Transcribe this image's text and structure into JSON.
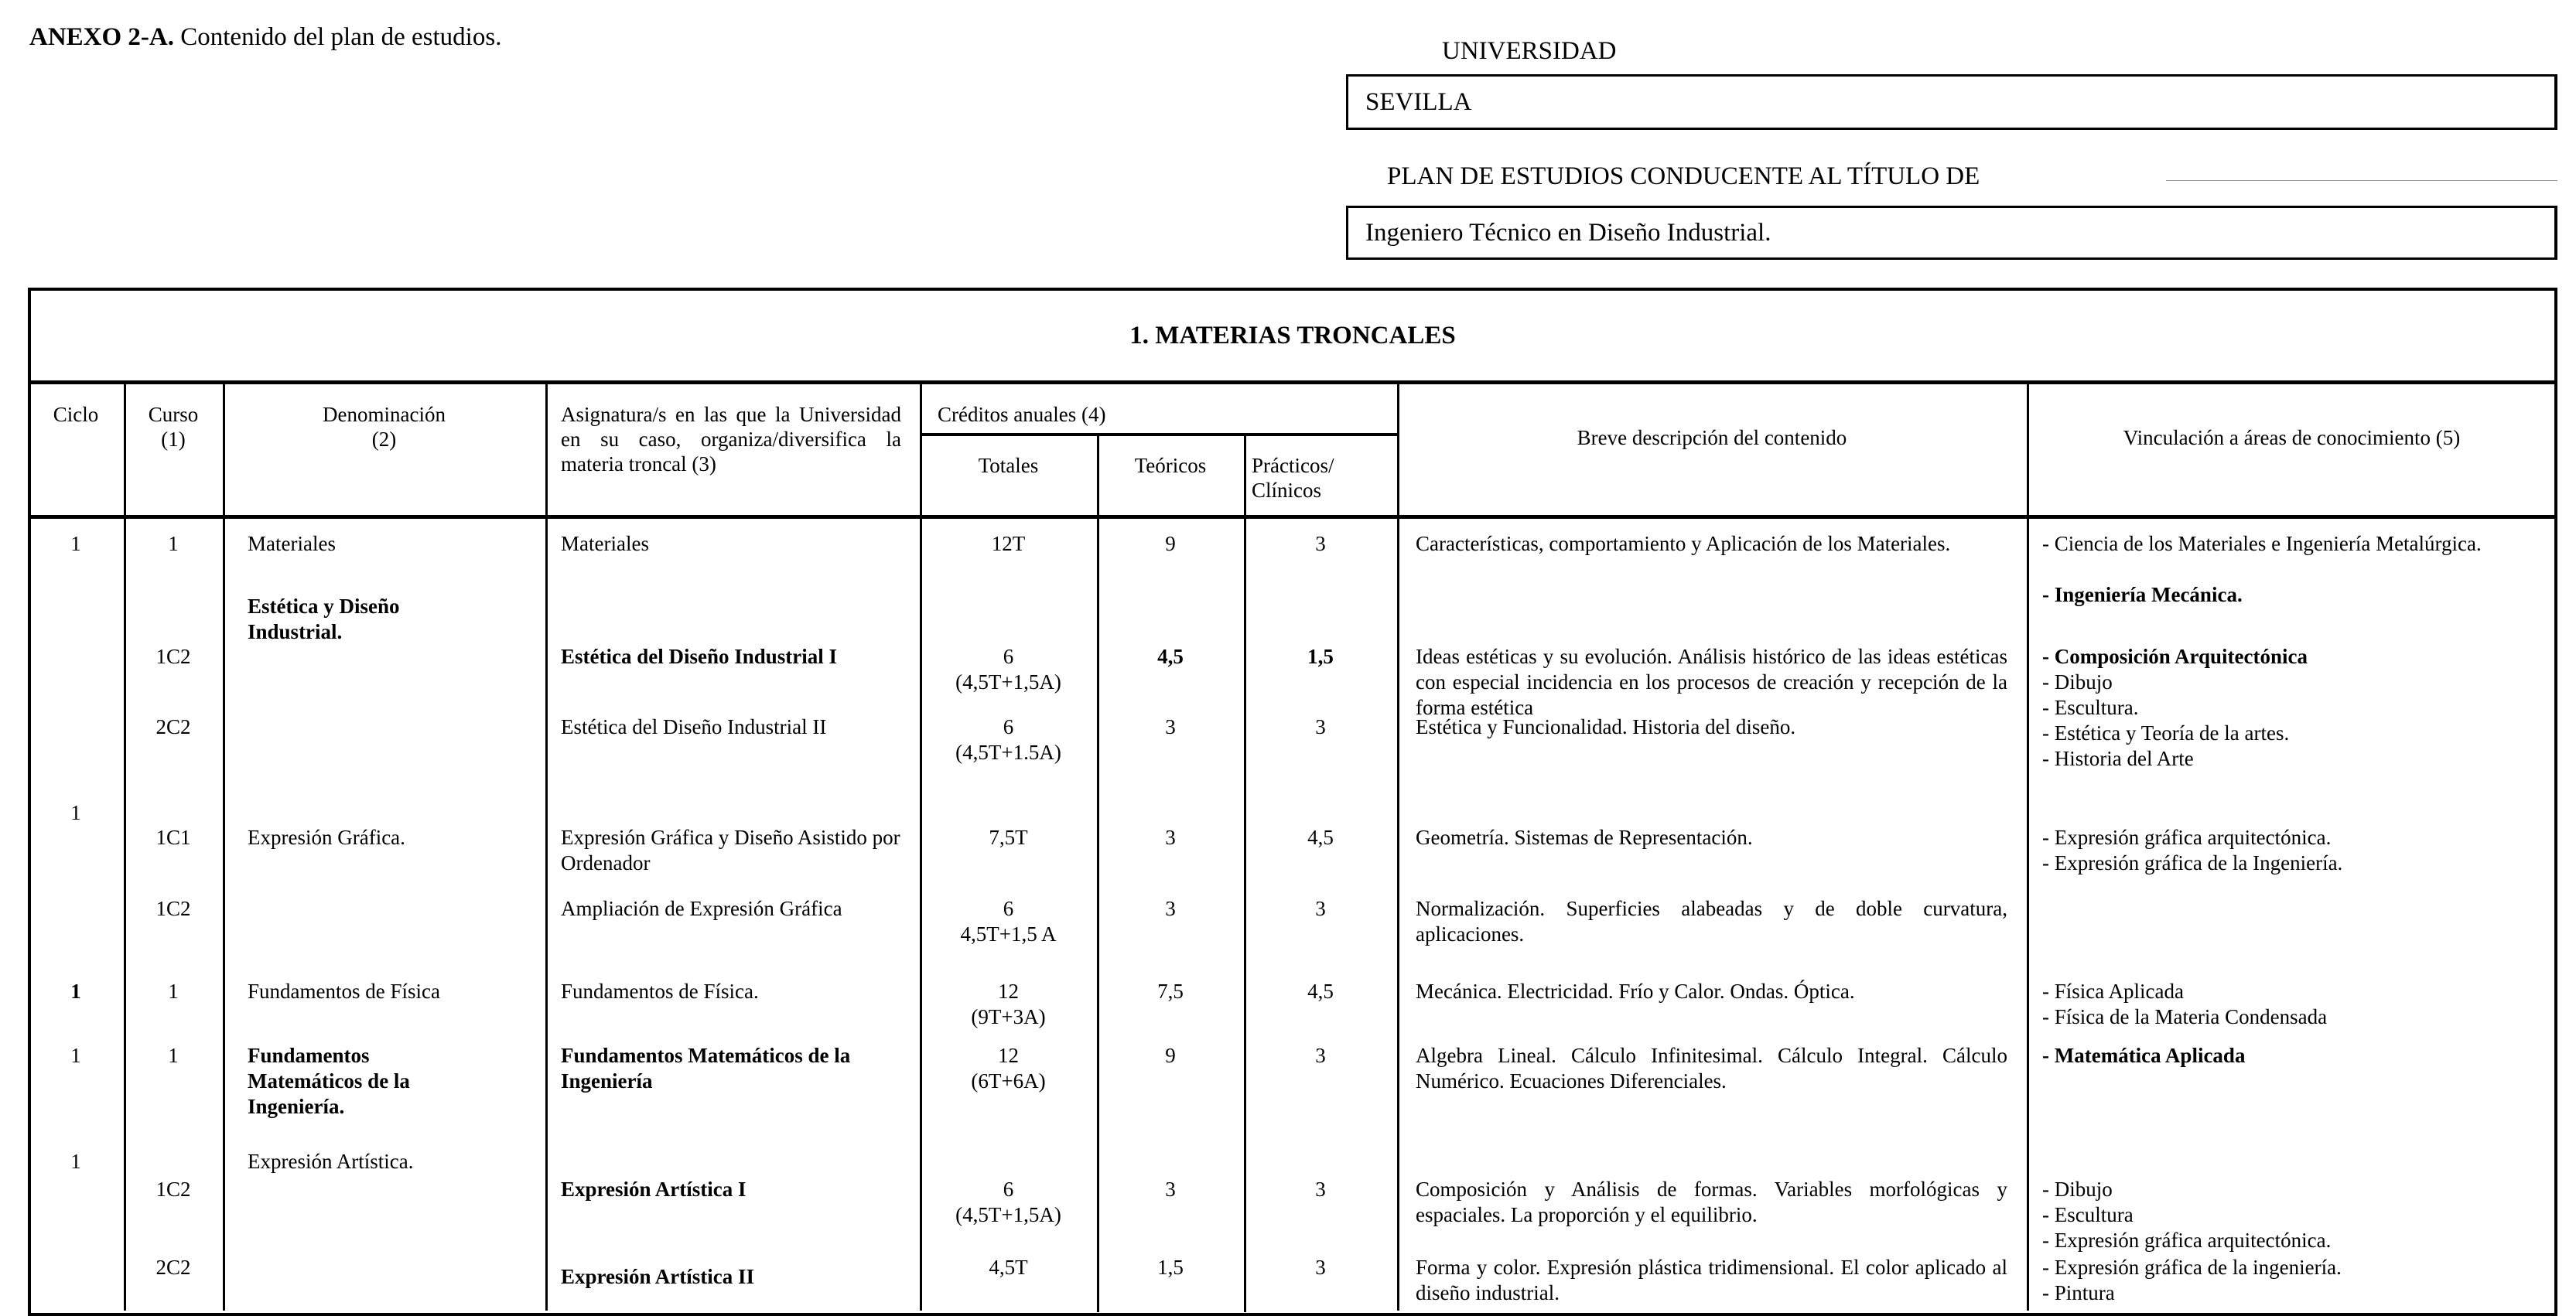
{
  "annex": {
    "code": "ANEXO 2-A.",
    "title": "Contenido del plan de estudios."
  },
  "university": {
    "label": "UNIVERSIDAD",
    "value": "SEVILLA"
  },
  "plan": {
    "label": "PLAN DE ESTUDIOS CONDUCENTE AL TÍTULO DE",
    "value": "Ingeniero Técnico  en Diseño Industrial."
  },
  "table": {
    "title": "1. MATERIAS TRONCALES",
    "headers": {
      "ciclo": "Ciclo",
      "curso": "Curso\n(1)",
      "denominacion": "Denominación\n(2)",
      "asignatura": "Asignatura/s en las que la Universidad en su caso, organiza/diversifica la materia troncal (3)",
      "creditos": "Créditos anuales (4)",
      "totales": "Totales",
      "teoricos": "Teóricos",
      "practicos": "Prácticos/\nClínicos",
      "descripcion": "Breve descripción del contenido",
      "vinculacion": "Vinculación a áreas de conocimiento (5)"
    },
    "rows": [
      {
        "ciclo": "1",
        "curso": "1",
        "denominacion": "Materiales",
        "asignatura": "Materiales",
        "totales": "12T",
        "teoricos": "9",
        "practicos": "3",
        "descripcion": "Características, comportamiento y Aplicación de los Materiales.",
        "areas": [
          "- Ciencia de los Materiales e Ingeniería Metalúrgica.",
          "- Ingeniería Mecánica."
        ]
      },
      {
        "ciclo": "",
        "curso": "",
        "denominacion": "Estética y Diseño Industrial.",
        "asignatura": "",
        "totales": "",
        "teoricos": "",
        "practicos": "",
        "descripcion": "",
        "areas": []
      },
      {
        "ciclo": "",
        "curso": "1C2",
        "denominacion": "",
        "asignatura": "Estética del Diseño Industrial I",
        "totales": "6\n(4,5T+1,5A)",
        "teoricos": "4,5",
        "practicos": "1,5",
        "descripcion": "Ideas estéticas y su evolución. Análisis histórico de las ideas estéticas con especial incidencia en los procesos de creación y recepción de la forma estética",
        "areas": [
          "- Composición Arquitectónica",
          "- Dibujo",
          "- Escultura.",
          "- Estética y Teoría de la artes.",
          "- Historia del Arte"
        ]
      },
      {
        "ciclo": "",
        "curso": "2C2",
        "denominacion": "",
        "asignatura": "Estética del Diseño Industrial II",
        "totales": "6\n(4,5T+1.5A)",
        "teoricos": "3",
        "practicos": "3",
        "descripcion": "Estética y Funcionalidad. Historia del diseño.",
        "areas": []
      },
      {
        "ciclo": "1",
        "curso": "",
        "denominacion": "",
        "asignatura": "",
        "totales": "",
        "teoricos": "",
        "practicos": "",
        "descripcion": "",
        "areas": []
      },
      {
        "ciclo": "",
        "curso": "1C1",
        "denominacion": "Expresión Gráfica.",
        "asignatura": "Expresión Gráfica y Diseño Asistido por Ordenador",
        "totales": "7,5T",
        "teoricos": "3",
        "practicos": "4,5",
        "descripcion": "Geometría. Sistemas de Representación.",
        "areas": [
          "- Expresión gráfica arquitectónica.",
          "- Expresión gráfica de la Ingeniería."
        ]
      },
      {
        "ciclo": "",
        "curso": "1C2",
        "denominacion": "",
        "asignatura": "Ampliación de Expresión Gráfica",
        "totales": "6\n4,5T+1,5 A",
        "teoricos": "3",
        "practicos": "3",
        "descripcion": " Normalización. Superficies alabeadas y de doble curvatura, aplicaciones.",
        "areas": []
      },
      {
        "ciclo": "1",
        "curso": "1",
        "denominacion": "Fundamentos de Física",
        "asignatura": "Fundamentos de Física.",
        "totales": "12\n(9T+3A)",
        "teoricos": "7,5",
        "practicos": "4,5",
        "descripcion": "Mecánica.  Electricidad. Frío y Calor. Ondas. Óptica.",
        "areas": [
          "- Física Aplicada",
          "- Física de la Materia Condensada"
        ]
      },
      {
        "ciclo": "1",
        "curso": "1",
        "denominacion": "Fundamentos Matemáticos de la Ingeniería.",
        "asignatura": "Fundamentos Matemáticos de la Ingeniería",
        "totales": "12\n(6T+6A)",
        "teoricos": "9",
        "practicos": "3",
        "descripcion": "Algebra Lineal. Cálculo Infinitesimal. Cálculo Integral. Cálculo Numérico. Ecuaciones Diferenciales.",
        "areas": [
          "- Matemática Aplicada"
        ]
      },
      {
        "ciclo": "1",
        "curso": "",
        "denominacion": "Expresión Artística.",
        "asignatura": "",
        "totales": "",
        "teoricos": "",
        "practicos": "",
        "descripcion": "",
        "areas": []
      },
      {
        "ciclo": "",
        "curso": "1C2",
        "denominacion": "",
        "asignatura": "Expresión Artística I",
        "totales": "6\n(4,5T+1,5A)",
        "teoricos": "3",
        "practicos": "3",
        "descripcion": "Composición y Análisis de formas. Variables morfológicas y espaciales. La proporción y el equilibrio.",
        "areas": [
          "- Dibujo",
          "- Escultura",
          "- Expresión gráfica arquitectónica."
        ]
      },
      {
        "ciclo": "",
        "curso": "2C2",
        "denominacion": "",
        "asignatura": "Expresión Artística II",
        "totales": "4,5T",
        "teoricos": "1,5",
        "practicos": "3",
        "descripcion": "Forma y color. Expresión plástica tridimensional. El color aplicado al diseño industrial.",
        "areas": [
          "- Expresión gráfica de la ingeniería.",
          "- Pintura"
        ]
      }
    ]
  }
}
